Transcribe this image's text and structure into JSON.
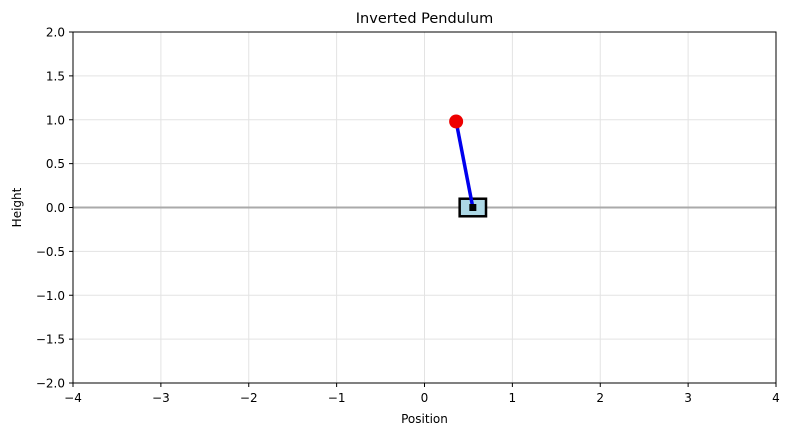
{
  "chart_data": {
    "type": "scatter",
    "title": "Inverted Pendulum",
    "xlabel": "Position",
    "ylabel": "Height",
    "xlim": [
      -4,
      4
    ],
    "ylim": [
      -2,
      2
    ],
    "xticks": [
      -4,
      -3,
      -2,
      -1,
      0,
      1,
      2,
      3,
      4
    ],
    "xtick_labels": [
      "−4",
      "−3",
      "−2",
      "−1",
      "0",
      "1",
      "2",
      "3",
      "4"
    ],
    "yticks": [
      2.0,
      1.5,
      1.0,
      0.5,
      0.0,
      -0.5,
      -1.0,
      -1.5,
      -2.0
    ],
    "ytick_labels": [
      "2.0",
      "1.5",
      "1.0",
      "0.5",
      "0.0",
      "−0.5",
      "−1.0",
      "−1.5",
      "−2.0"
    ],
    "grid": true,
    "ground_line": {
      "y": 0,
      "color": "#aaaaaa"
    },
    "cart": {
      "x": 0.55,
      "y": 0.0,
      "width": 0.3,
      "height": 0.2,
      "fill": "#add8e6",
      "edge": "#000000"
    },
    "pivot": {
      "x": 0.55,
      "y": 0.0,
      "color": "#000000"
    },
    "rod": {
      "x": [
        0.55,
        0.36
      ],
      "y": [
        0.0,
        0.98
      ],
      "color": "#0000ee"
    },
    "bob": {
      "x": 0.36,
      "y": 0.98,
      "color": "#ee0000"
    }
  }
}
